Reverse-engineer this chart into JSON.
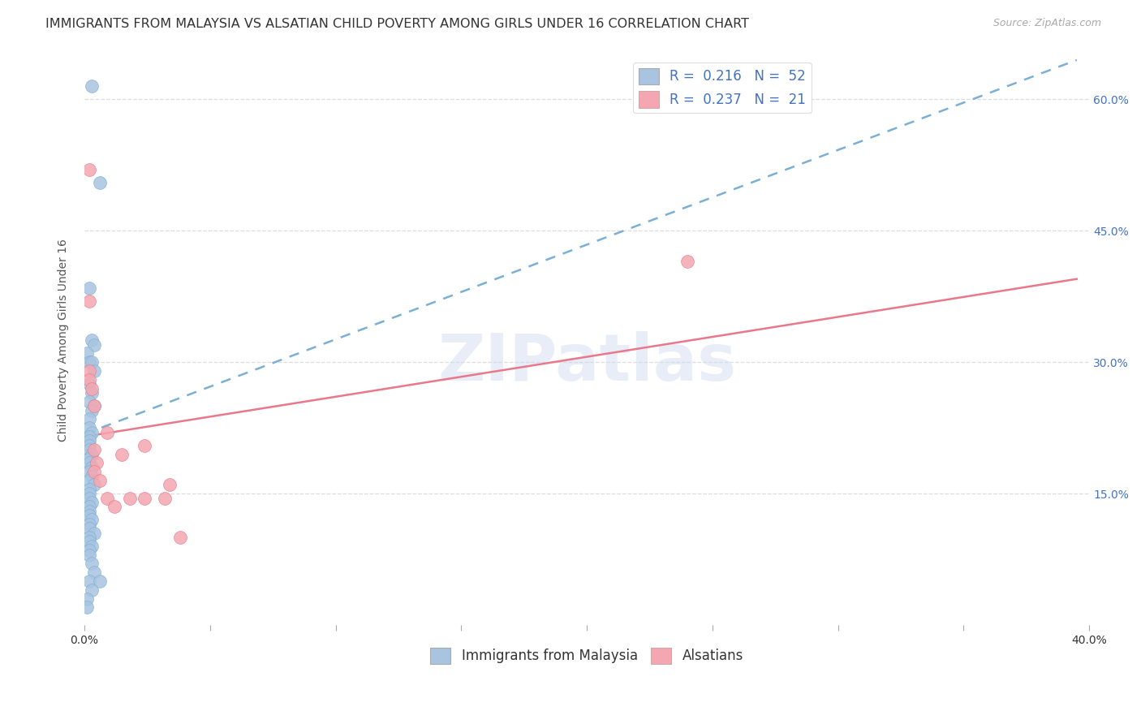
{
  "title": "IMMIGRANTS FROM MALAYSIA VS ALSATIAN CHILD POVERTY AMONG GIRLS UNDER 16 CORRELATION CHART",
  "source": "Source: ZipAtlas.com",
  "ylabel": "Child Poverty Among Girls Under 16",
  "xlim": [
    0.0,
    0.4
  ],
  "ylim": [
    0.0,
    0.65
  ],
  "xticks": [
    0.0,
    0.05,
    0.1,
    0.15,
    0.2,
    0.25,
    0.3,
    0.35,
    0.4
  ],
  "yticks": [
    0.0,
    0.15,
    0.3,
    0.45,
    0.6
  ],
  "blue_color": "#a8c4e0",
  "blue_edge_color": "#7bafd4",
  "pink_color": "#f4a7b0",
  "pink_edge_color": "#e87a8a",
  "blue_R": 0.216,
  "blue_N": 52,
  "pink_R": 0.237,
  "pink_N": 21,
  "watermark": "ZIPatlas",
  "blue_scatter_x": [
    0.003,
    0.006,
    0.002,
    0.003,
    0.004,
    0.001,
    0.002,
    0.003,
    0.004,
    0.002,
    0.003,
    0.002,
    0.004,
    0.003,
    0.002,
    0.002,
    0.003,
    0.002,
    0.002,
    0.002,
    0.002,
    0.003,
    0.002,
    0.002,
    0.003,
    0.002,
    0.003,
    0.002,
    0.004,
    0.002,
    0.002,
    0.002,
    0.003,
    0.002,
    0.002,
    0.002,
    0.003,
    0.002,
    0.002,
    0.004,
    0.002,
    0.002,
    0.003,
    0.002,
    0.002,
    0.003,
    0.004,
    0.002,
    0.006,
    0.003,
    0.001,
    0.001
  ],
  "blue_scatter_y": [
    0.615,
    0.505,
    0.385,
    0.325,
    0.32,
    0.31,
    0.3,
    0.3,
    0.29,
    0.275,
    0.265,
    0.255,
    0.25,
    0.245,
    0.235,
    0.225,
    0.22,
    0.215,
    0.21,
    0.205,
    0.2,
    0.195,
    0.19,
    0.185,
    0.18,
    0.175,
    0.17,
    0.165,
    0.16,
    0.155,
    0.15,
    0.145,
    0.14,
    0.135,
    0.13,
    0.125,
    0.12,
    0.115,
    0.11,
    0.105,
    0.1,
    0.095,
    0.09,
    0.085,
    0.08,
    0.07,
    0.06,
    0.05,
    0.05,
    0.04,
    0.03,
    0.02
  ],
  "pink_scatter_x": [
    0.002,
    0.002,
    0.002,
    0.002,
    0.003,
    0.004,
    0.004,
    0.005,
    0.004,
    0.006,
    0.009,
    0.009,
    0.012,
    0.015,
    0.018,
    0.024,
    0.024,
    0.032,
    0.034,
    0.24,
    0.038
  ],
  "pink_scatter_y": [
    0.52,
    0.37,
    0.29,
    0.28,
    0.27,
    0.25,
    0.2,
    0.185,
    0.175,
    0.165,
    0.22,
    0.145,
    0.135,
    0.195,
    0.145,
    0.205,
    0.145,
    0.145,
    0.16,
    0.415,
    0.1
  ],
  "blue_line_x": [
    0.0,
    0.395
  ],
  "blue_line_y": [
    0.218,
    0.645
  ],
  "pink_line_x": [
    0.0,
    0.395
  ],
  "pink_line_y": [
    0.215,
    0.395
  ],
  "grid_color": "#dddddd",
  "grid_style": "--",
  "title_fontsize": 11.5,
  "axis_label_fontsize": 10,
  "tick_fontsize": 10,
  "legend_fontsize": 12
}
